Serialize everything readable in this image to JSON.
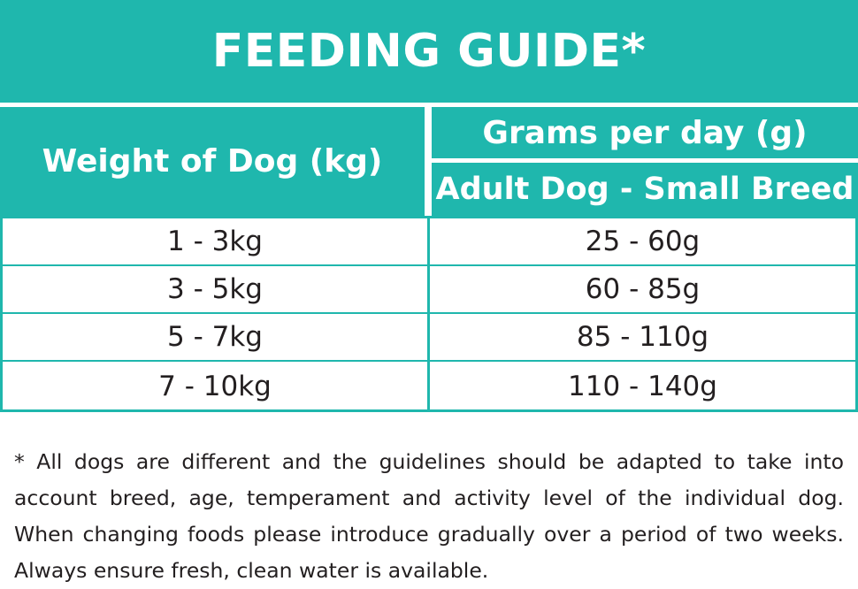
{
  "title": "FEEDING GUIDE*",
  "table": {
    "weight_header": "Weight of Dog (kg)",
    "grams_header": "Grams per day (g)",
    "sub_header": "Adult Dog - Small Breed",
    "rows": [
      {
        "weight": "1 - 3kg",
        "grams": "25 - 60g"
      },
      {
        "weight": "3 - 5kg",
        "grams": "60 - 85g"
      },
      {
        "weight": "5 - 7kg",
        "grams": "85 - 110g"
      },
      {
        "weight": "7 - 10kg",
        "grams": "110 - 140g"
      }
    ]
  },
  "footnote": {
    "lines": [
      "* All dogs are different and the guidelines should be adapted to take into",
      "account breed, age, temperament and activity level of the individual dog.",
      "When changing foods please introduce gradually over a period of two weeks.",
      "Always ensure fresh, clean water is available."
    ]
  },
  "colors": {
    "accent": "#1fb7ad",
    "text": "#231f20",
    "header_text": "#ffffff"
  }
}
